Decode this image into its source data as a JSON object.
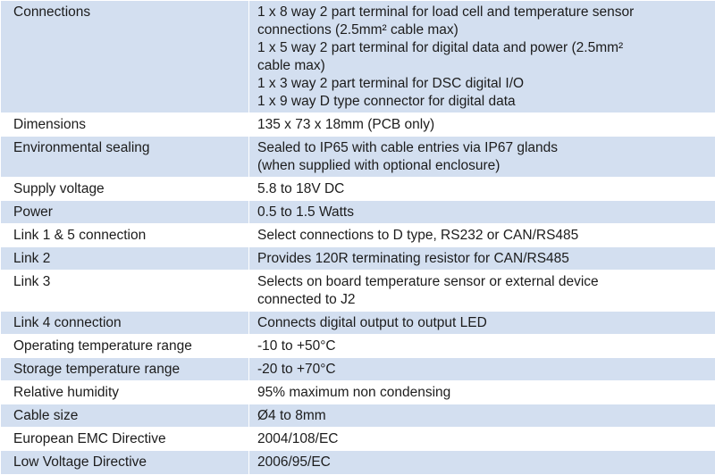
{
  "rows": [
    {
      "label": "Connections",
      "value": "1 x 8 way 2 part terminal for load cell and temperature sensor\nconnections (2.5mm² cable max)\n1 x 5 way 2 part terminal for digital data and power (2.5mm²\ncable max)\n1 x 3 way 2 part terminal for DSC digital I/O\n1 x 9 way D type connector for digital data"
    },
    {
      "label": "Dimensions",
      "value": "135 x 73 x 18mm (PCB only)"
    },
    {
      "label": "Environmental sealing",
      "value": "Sealed to IP65 with cable entries via IP67 glands\n(when supplied with optional enclosure)"
    },
    {
      "label": "Supply voltage",
      "value": "5.8 to 18V DC"
    },
    {
      "label": "Power",
      "value": "0.5 to 1.5 Watts"
    },
    {
      "label": "Link 1 & 5 connection",
      "value": "Select connections to D type, RS232 or CAN/RS485"
    },
    {
      "label": "Link 2",
      "value": "Provides 120R terminating resistor for CAN/RS485"
    },
    {
      "label": "Link 3",
      "value": "Selects on board temperature sensor or external device\nconnected to J2"
    },
    {
      "label": "Link 4 connection",
      "value": "Connects digital output to output LED"
    },
    {
      "label": "Operating temperature range",
      "value": "-10 to +50°C"
    },
    {
      "label": "Storage temperature range",
      "value": "-20 to +70°C"
    },
    {
      "label": "Relative humidity",
      "value": "95% maximum non condensing"
    },
    {
      "label": "Cable size",
      "value": "Ø4 to 8mm"
    },
    {
      "label": "European EMC Directive",
      "value": "2004/108/EC"
    },
    {
      "label": "Low Voltage Directive",
      "value": "2006/95/EC"
    }
  ],
  "colors": {
    "shaded_row": "#d3dff0",
    "plain_row": "#ffffff",
    "text": "#1c1c1c"
  }
}
